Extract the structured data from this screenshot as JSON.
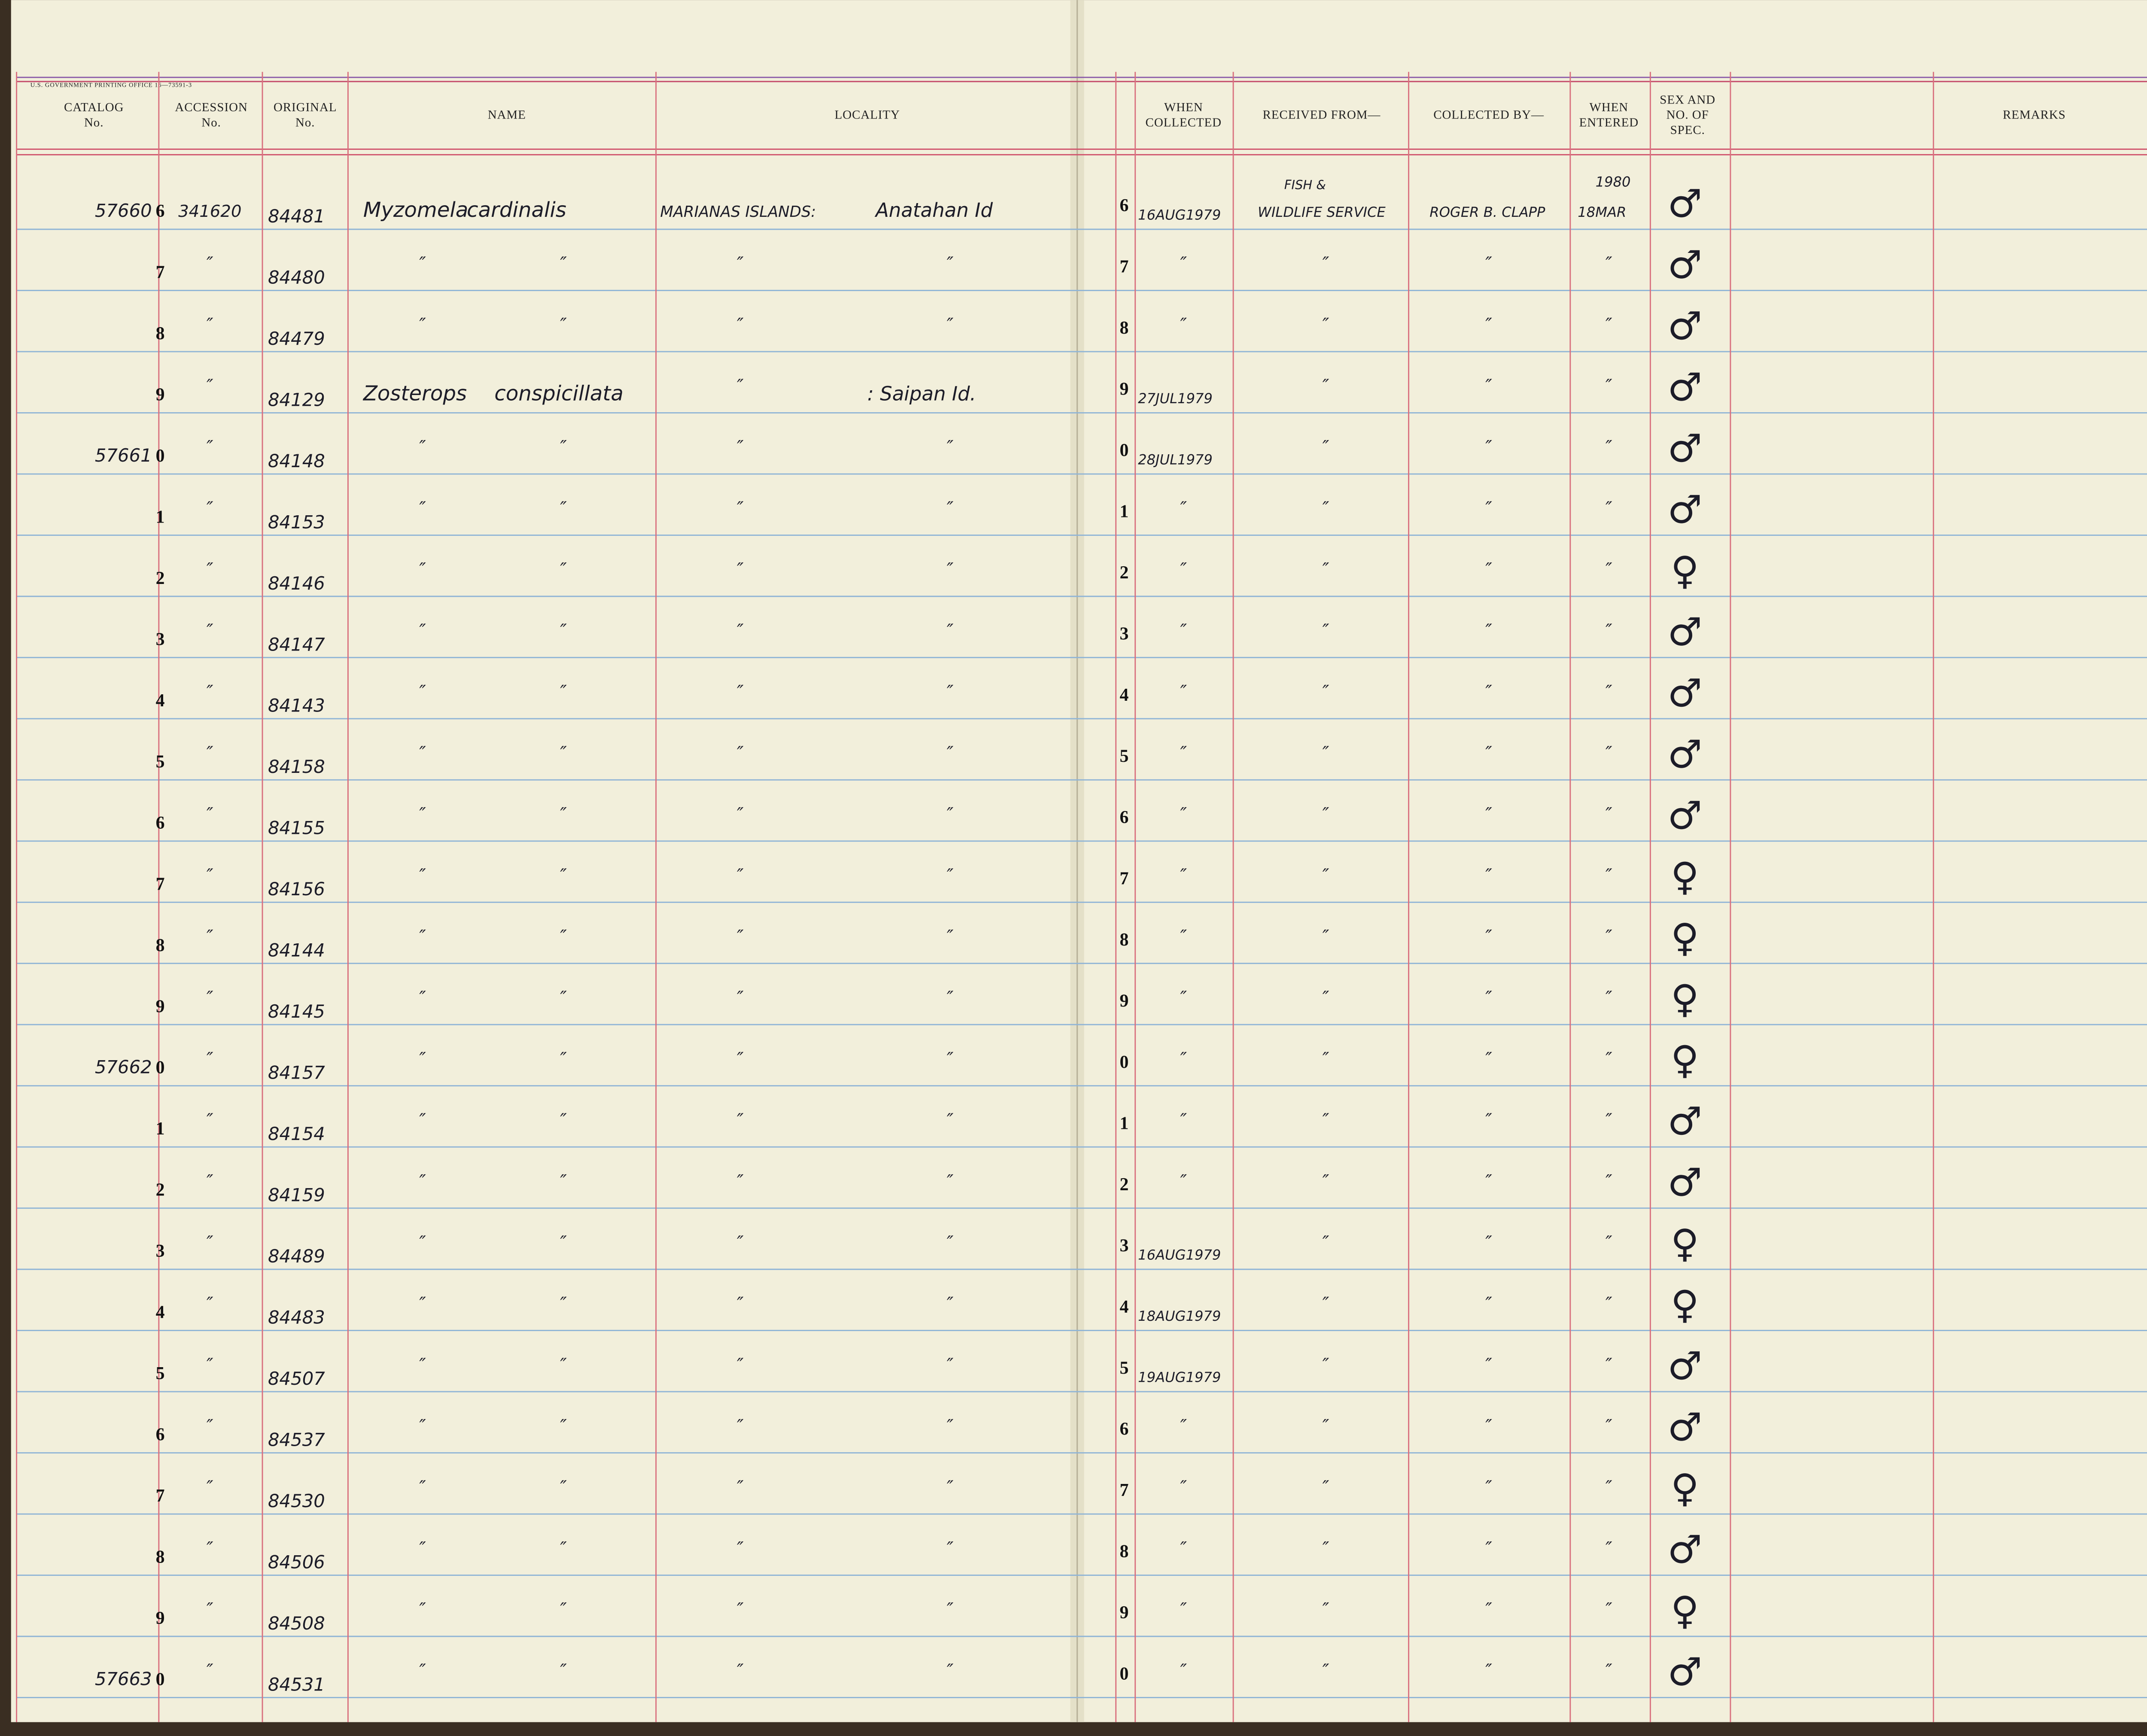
{
  "form_code": "U.S. GOVERNMENT PRINTING OFFICE   16—73591-3",
  "headers": [
    {
      "key": "catalog",
      "lines": [
        "CATALOG",
        "No."
      ]
    },
    {
      "key": "accession",
      "lines": [
        "ACCESSION",
        "No."
      ]
    },
    {
      "key": "original",
      "lines": [
        "ORIGINAL",
        "No."
      ]
    },
    {
      "key": "name",
      "lines": [
        "NAME"
      ]
    },
    {
      "key": "locality",
      "lines": [
        "LOCALITY"
      ]
    },
    {
      "key": "when_collected",
      "lines": [
        "WHEN",
        "COLLECTED"
      ]
    },
    {
      "key": "received_from",
      "lines": [
        "RECEIVED FROM—"
      ]
    },
    {
      "key": "collected_by",
      "lines": [
        "COLLECTED BY—"
      ]
    },
    {
      "key": "when_entered",
      "lines": [
        "WHEN",
        "ENTERED"
      ]
    },
    {
      "key": "sex",
      "lines": [
        "SEX AND",
        "NO. OF",
        "SPEC."
      ]
    },
    {
      "key": "remarks",
      "lines": [
        "REMARKS"
      ]
    }
  ],
  "rows": [
    {
      "prefix": "57660",
      "digit": "6",
      "accession": "341620",
      "original": "84481",
      "genus": "Myzomela",
      "species": "cardinalis",
      "locality_a": "MARIANAS ISLANDS:",
      "locality_b": "Anatahan Id",
      "when_collected": "16AUG1979",
      "received_from_top": "FISH &",
      "received_from": "WILDLIFE SERVICE",
      "collected_by": "ROGER B. CLAPP",
      "when_entered_top": "1980",
      "when_entered": "18MAR",
      "sex": "♂"
    },
    {
      "digit": "7",
      "accession": "″",
      "original": "84480",
      "genus": "″",
      "species": "″",
      "locality_a": "″",
      "locality_b": "″",
      "when_collected": "″",
      "received_from": "″",
      "collected_by": "″",
      "when_entered": "″",
      "sex": "♂"
    },
    {
      "digit": "8",
      "accession": "″",
      "original": "84479",
      "genus": "″",
      "species": "″",
      "locality_a": "″",
      "locality_b": "″",
      "when_collected": "″",
      "received_from": "″",
      "collected_by": "″",
      "when_entered": "″",
      "sex": "♂"
    },
    {
      "digit": "9",
      "accession": "″",
      "original": "84129",
      "genus": "Zosterops",
      "species": "conspicillata",
      "locality_a": "″",
      "locality_b": ": Saipan Id.",
      "when_collected": "27JUL1979",
      "received_from": "″",
      "collected_by": "″",
      "when_entered": "″",
      "sex": "♂"
    },
    {
      "prefix": "57661",
      "digit": "0",
      "accession": "″",
      "original": "84148",
      "genus": "″",
      "species": "″",
      "locality_a": "″",
      "locality_b": "″",
      "when_collected": "28JUL1979",
      "received_from": "″",
      "collected_by": "″",
      "when_entered": "″",
      "sex": "♂"
    },
    {
      "digit": "1",
      "accession": "″",
      "original": "84153",
      "genus": "″",
      "species": "″",
      "locality_a": "″",
      "locality_b": "″",
      "when_collected": "″",
      "received_from": "″",
      "collected_by": "″",
      "when_entered": "″",
      "sex": "♂"
    },
    {
      "digit": "2",
      "accession": "″",
      "original": "84146",
      "genus": "″",
      "species": "″",
      "locality_a": "″",
      "locality_b": "″",
      "when_collected": "″",
      "received_from": "″",
      "collected_by": "″",
      "when_entered": "″",
      "sex": "♀"
    },
    {
      "digit": "3",
      "accession": "″",
      "original": "84147",
      "genus": "″",
      "species": "″",
      "locality_a": "″",
      "locality_b": "″",
      "when_collected": "″",
      "received_from": "″",
      "collected_by": "″",
      "when_entered": "″",
      "sex": "♂"
    },
    {
      "digit": "4",
      "accession": "″",
      "original": "84143",
      "genus": "″",
      "species": "″",
      "locality_a": "″",
      "locality_b": "″",
      "when_collected": "″",
      "received_from": "″",
      "collected_by": "″",
      "when_entered": "″",
      "sex": "♂"
    },
    {
      "digit": "5",
      "accession": "″",
      "original": "84158",
      "genus": "″",
      "species": "″",
      "locality_a": "″",
      "locality_b": "″",
      "when_collected": "″",
      "received_from": "″",
      "collected_by": "″",
      "when_entered": "″",
      "sex": "♂"
    },
    {
      "digit": "6",
      "accession": "″",
      "original": "84155",
      "genus": "″",
      "species": "″",
      "locality_a": "″",
      "locality_b": "″",
      "when_collected": "″",
      "received_from": "″",
      "collected_by": "″",
      "when_entered": "″",
      "sex": "♂"
    },
    {
      "digit": "7",
      "accession": "″",
      "original": "84156",
      "genus": "″",
      "species": "″",
      "locality_a": "″",
      "locality_b": "″",
      "when_collected": "″",
      "received_from": "″",
      "collected_by": "″",
      "when_entered": "″",
      "sex": "♀"
    },
    {
      "digit": "8",
      "accession": "″",
      "original": "84144",
      "genus": "″",
      "species": "″",
      "locality_a": "″",
      "locality_b": "″",
      "when_collected": "″",
      "received_from": "″",
      "collected_by": "″",
      "when_entered": "″",
      "sex": "♀"
    },
    {
      "digit": "9",
      "accession": "″",
      "original": "84145",
      "genus": "″",
      "species": "″",
      "locality_a": "″",
      "locality_b": "″",
      "when_collected": "″",
      "received_from": "″",
      "collected_by": "″",
      "when_entered": "″",
      "sex": "♀"
    },
    {
      "prefix": "57662",
      "digit": "0",
      "accession": "″",
      "original": "84157",
      "genus": "″",
      "species": "″",
      "locality_a": "″",
      "locality_b": "″",
      "when_collected": "″",
      "received_from": "″",
      "collected_by": "″",
      "when_entered": "″",
      "sex": "♀"
    },
    {
      "digit": "1",
      "accession": "″",
      "original": "84154",
      "genus": "″",
      "species": "″",
      "locality_a": "″",
      "locality_b": "″",
      "when_collected": "″",
      "received_from": "″",
      "collected_by": "″",
      "when_entered": "″",
      "sex": "♂"
    },
    {
      "digit": "2",
      "accession": "″",
      "original": "84159",
      "genus": "″",
      "species": "″",
      "locality_a": "″",
      "locality_b": "″",
      "when_collected": "″",
      "received_from": "″",
      "collected_by": "″",
      "when_entered": "″",
      "sex": "♂"
    },
    {
      "digit": "3",
      "accession": "″",
      "original": "84489",
      "genus": "″",
      "species": "″",
      "locality_a": "″",
      "locality_b": "″",
      "when_collected": "16AUG1979",
      "received_from": "″",
      "collected_by": "″",
      "when_entered": "″",
      "sex": "♀"
    },
    {
      "digit": "4",
      "accession": "″",
      "original": "84483",
      "genus": "″",
      "species": "″",
      "locality_a": "″",
      "locality_b": "″",
      "when_collected": "18AUG1979",
      "received_from": "″",
      "collected_by": "″",
      "when_entered": "″",
      "sex": "♀"
    },
    {
      "digit": "5",
      "accession": "″",
      "original": "84507",
      "genus": "″",
      "species": "″",
      "locality_a": "″",
      "locality_b": "″",
      "when_collected": "19AUG1979",
      "received_from": "″",
      "collected_by": "″",
      "when_entered": "″",
      "sex": "♂"
    },
    {
      "digit": "6",
      "accession": "″",
      "original": "84537",
      "genus": "″",
      "species": "″",
      "locality_a": "″",
      "locality_b": "″",
      "when_collected": "″",
      "received_from": "″",
      "collected_by": "″",
      "when_entered": "″",
      "sex": "♂"
    },
    {
      "digit": "7",
      "accession": "″",
      "original": "84530",
      "genus": "″",
      "species": "″",
      "locality_a": "″",
      "locality_b": "″",
      "when_collected": "″",
      "received_from": "″",
      "collected_by": "″",
      "when_entered": "″",
      "sex": "♀"
    },
    {
      "digit": "8",
      "accession": "″",
      "original": "84506",
      "genus": "″",
      "species": "″",
      "locality_a": "″",
      "locality_b": "″",
      "when_collected": "″",
      "received_from": "″",
      "collected_by": "″",
      "when_entered": "″",
      "sex": "♂"
    },
    {
      "digit": "9",
      "accession": "″",
      "original": "84508",
      "genus": "″",
      "species": "″",
      "locality_a": "″",
      "locality_b": "″",
      "when_collected": "″",
      "received_from": "″",
      "collected_by": "″",
      "when_entered": "″",
      "sex": "♀"
    },
    {
      "prefix": "57663",
      "digit": "0",
      "accession": "″",
      "original": "84531",
      "genus": "″",
      "species": "″",
      "locality_a": "″",
      "locality_b": "″",
      "when_collected": "″",
      "received_from": "″",
      "collected_by": "″",
      "when_entered": "″",
      "sex": "♂"
    }
  ]
}
